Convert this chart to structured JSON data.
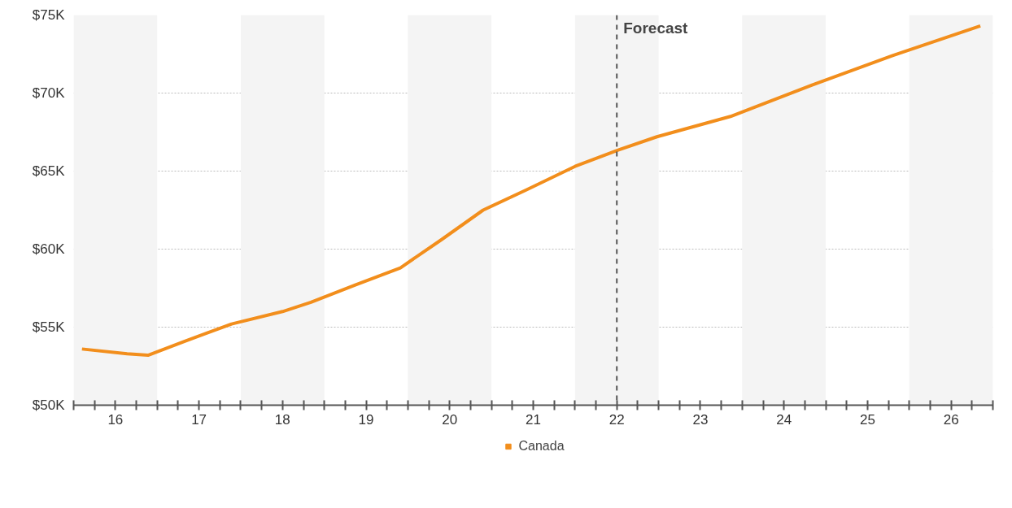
{
  "chart_data": {
    "type": "line",
    "x": [
      16.1,
      16.64,
      16.89,
      17.33,
      17.89,
      18.5,
      18.84,
      19.37,
      19.91,
      20.4,
      20.9,
      21.42,
      22.0,
      22.49,
      22.98,
      23.86,
      24.83,
      25.8,
      26.85
    ],
    "series": [
      {
        "name": "Canada",
        "color": "#f28e1c",
        "values": [
          53.6,
          53.3,
          53.2,
          54.1,
          55.2,
          56.0,
          56.6,
          57.7,
          58.8,
          60.6,
          62.5,
          63.8,
          65.3,
          66.3,
          67.2,
          68.5,
          70.5,
          72.4,
          74.3
        ]
      }
    ],
    "xlim": [
      16,
      27
    ],
    "ylim": [
      50,
      75
    ],
    "xticks": [
      {
        "value": 16.5,
        "label": "16"
      },
      {
        "value": 17.5,
        "label": "17"
      },
      {
        "value": 18.5,
        "label": "18"
      },
      {
        "value": 19.5,
        "label": "19"
      },
      {
        "value": 20.5,
        "label": "20"
      },
      {
        "value": 21.5,
        "label": "21"
      },
      {
        "value": 22.5,
        "label": "22"
      },
      {
        "value": 23.5,
        "label": "23"
      },
      {
        "value": 24.5,
        "label": "24"
      },
      {
        "value": 25.5,
        "label": "25"
      },
      {
        "value": 26.5,
        "label": "26"
      }
    ],
    "yticks": [
      {
        "value": 50,
        "label": "$50K"
      },
      {
        "value": 55,
        "label": "$55K"
      },
      {
        "value": 60,
        "label": "$60K"
      },
      {
        "value": 65,
        "label": "$65K"
      },
      {
        "value": 70,
        "label": "$70K"
      },
      {
        "value": 75,
        "label": "$75K"
      }
    ],
    "ref_lines": [
      {
        "axis": "x",
        "value": 22.5,
        "label": "Forecast",
        "color": "#555555",
        "line_style": "dashed"
      }
    ],
    "bands": [
      {
        "axis": "x",
        "from": 16,
        "to": 17,
        "color": "#f4f4f4"
      },
      {
        "axis": "x",
        "from": 18,
        "to": 19,
        "color": "#f4f4f4"
      },
      {
        "axis": "x",
        "from": 20,
        "to": 21,
        "color": "#f4f4f4"
      },
      {
        "axis": "x",
        "from": 22,
        "to": 23,
        "color": "#f4f4f4"
      },
      {
        "axis": "x",
        "from": 24,
        "to": 25,
        "color": "#f4f4f4"
      },
      {
        "axis": "x",
        "from": 26,
        "to": 27,
        "color": "#f4f4f4"
      }
    ],
    "grid": "y",
    "legend": "bottom",
    "marker": "none",
    "line_style": "solid"
  }
}
